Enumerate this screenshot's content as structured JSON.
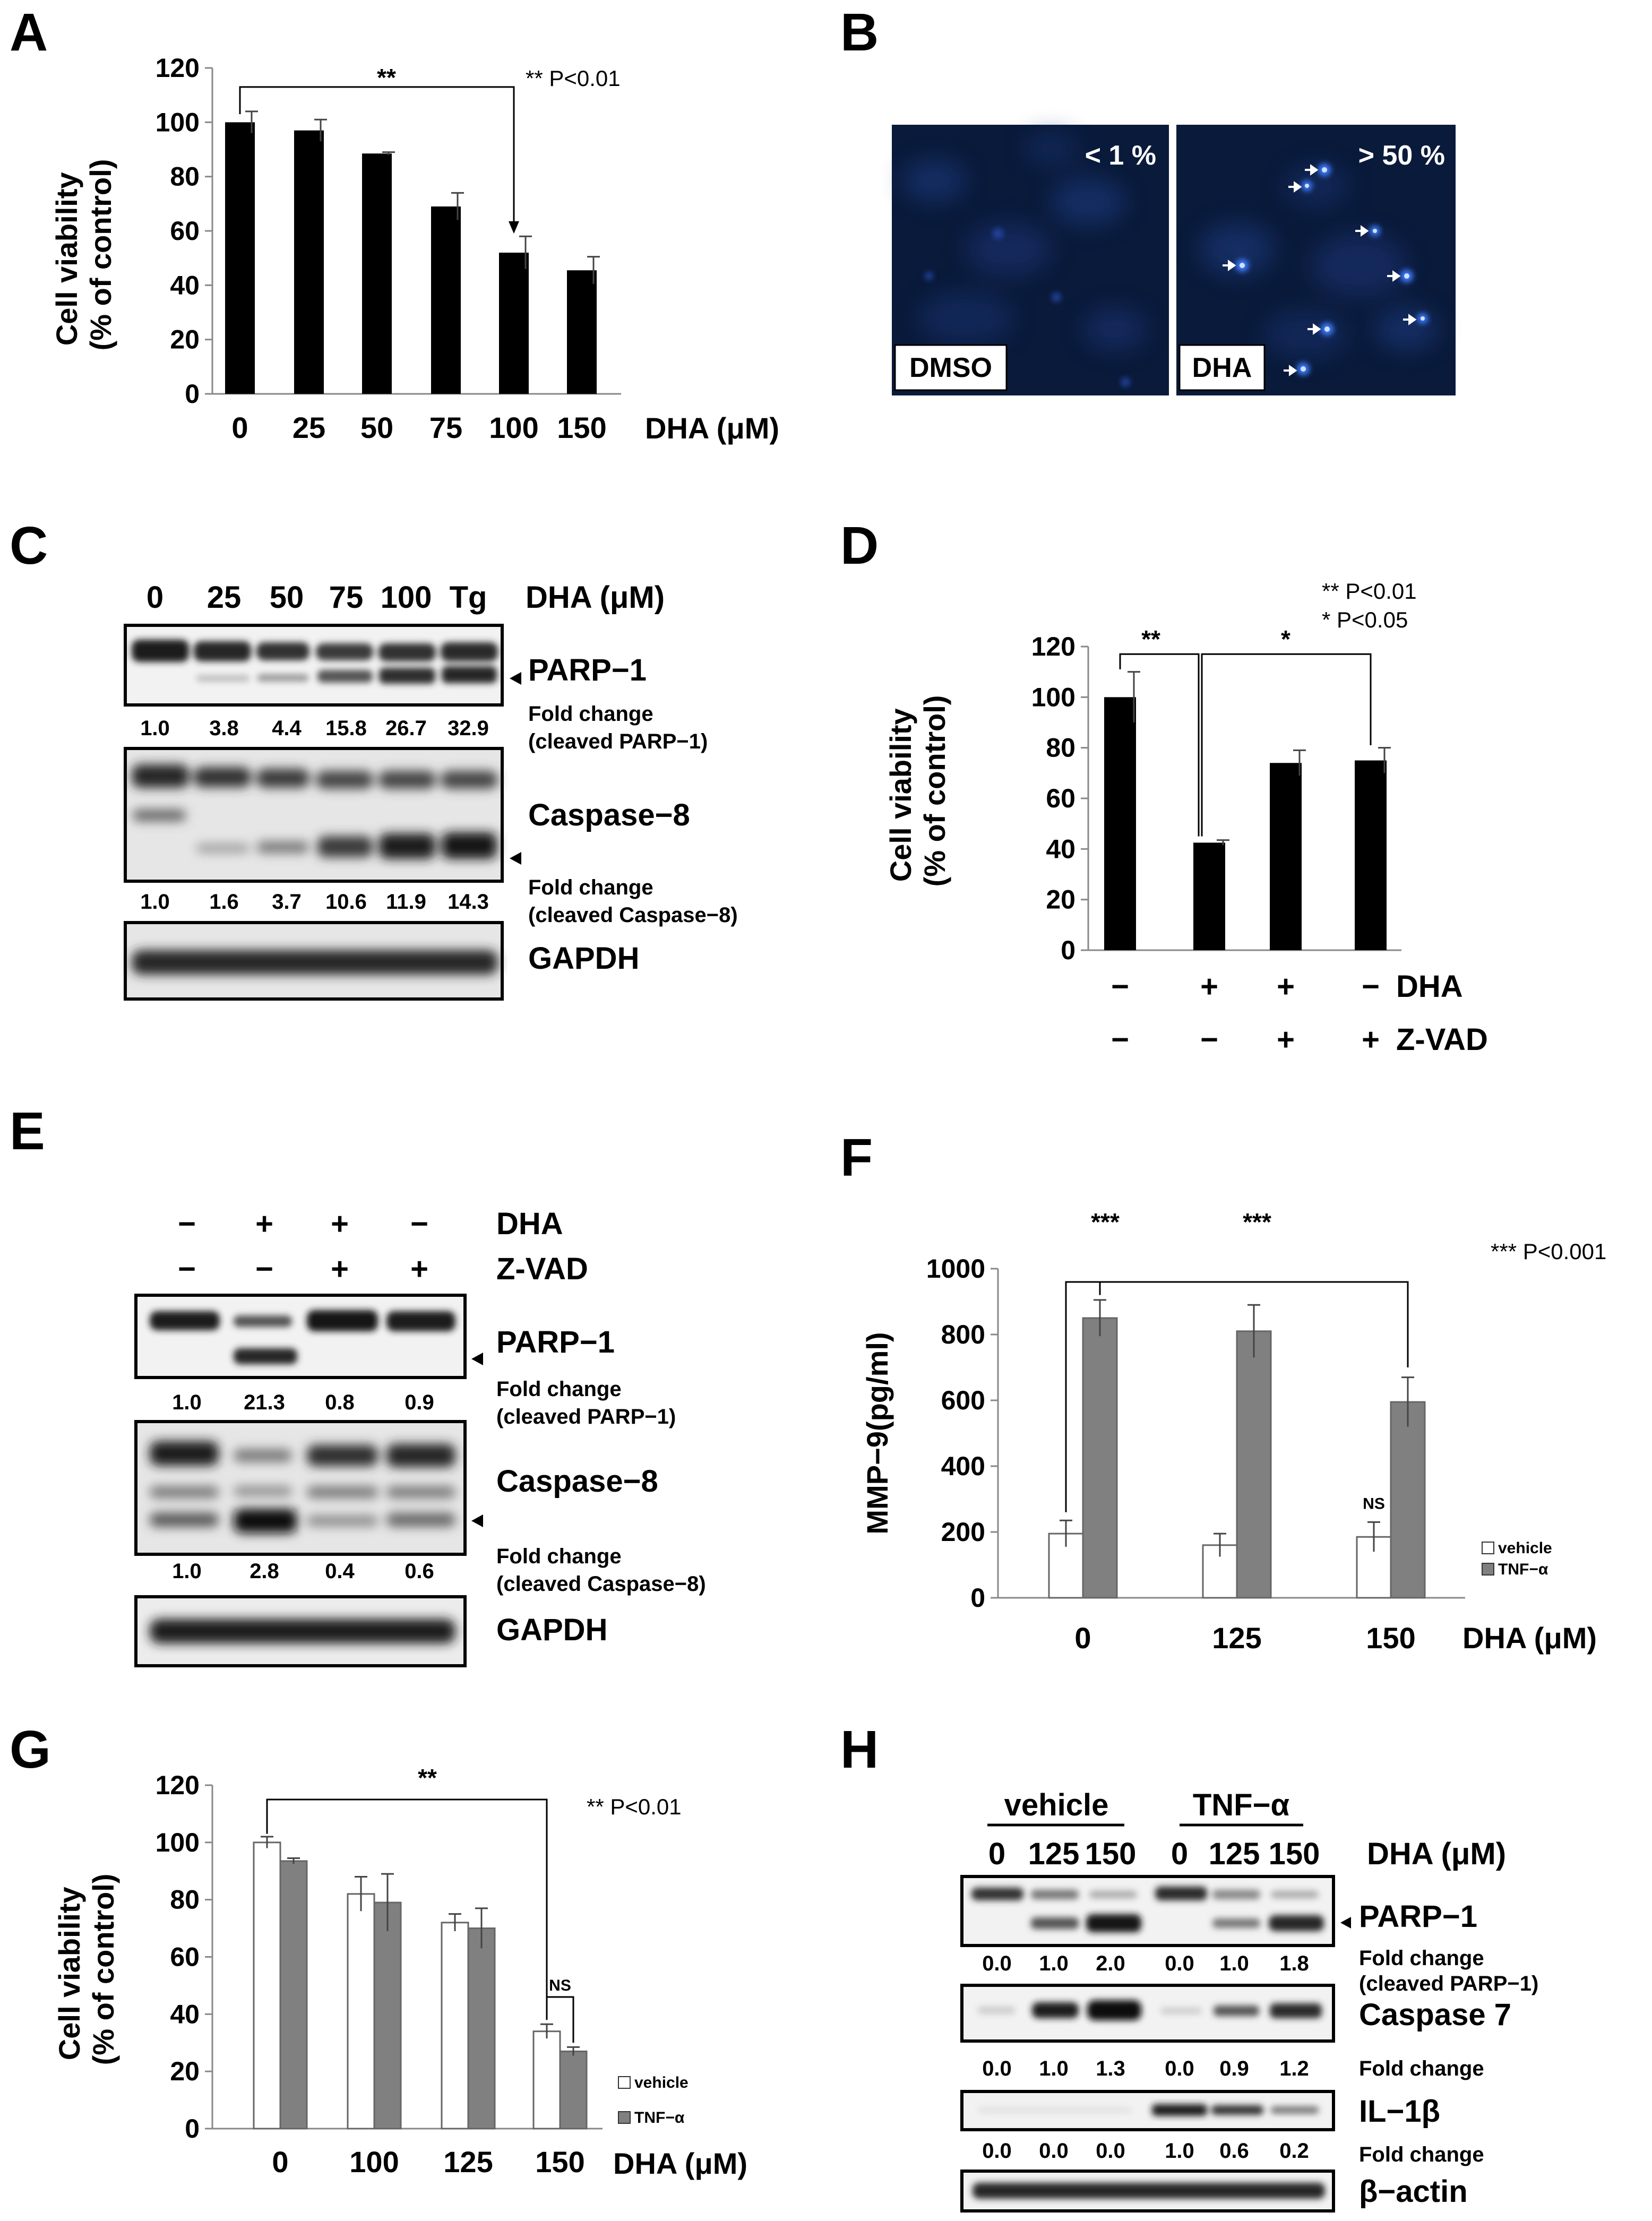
{
  "panels": {
    "A": {
      "label": "A",
      "significance": "**",
      "p_note": "** P<0.01",
      "chart_data": {
        "type": "bar",
        "categories": [
          "0",
          "25",
          "50",
          "75",
          "100",
          "150"
        ],
        "values": [
          100,
          97,
          88.5,
          69,
          52,
          45.5
        ],
        "errors": [
          4,
          4,
          0.5,
          5,
          6,
          5
        ],
        "title": "",
        "xlabel": "DHA (μM)",
        "ylabel": "Cell viability\n(% of control)",
        "ylabel_lines": [
          "Cell viability",
          "(% of control)"
        ],
        "ylim": [
          0,
          120
        ],
        "yticks": [
          0,
          20,
          40,
          60,
          80,
          100,
          120
        ],
        "colors": [
          "#000000"
        ]
      }
    },
    "B": {
      "label": "B",
      "images": [
        {
          "label": "DMSO",
          "percent": "< 1 %"
        },
        {
          "label": "DHA",
          "percent": "> 50 %"
        }
      ]
    },
    "C": {
      "label": "C",
      "lanes": [
        "0",
        "25",
        "50",
        "75",
        "100",
        "Tg"
      ],
      "treatment_label": "DHA (μM)",
      "blots": [
        {
          "name": "PARP−1",
          "fold_label_1": "Fold change",
          "fold_label_2": "(cleaved PARP−1)",
          "fold": [
            "1.0",
            "3.8",
            "4.4",
            "15.8",
            "26.7",
            "32.9"
          ]
        },
        {
          "name": "Caspase−8",
          "fold_label_1": "Fold change",
          "fold_label_2": "(cleaved Caspase−8)",
          "fold": [
            "1.0",
            "1.6",
            "3.7",
            "10.6",
            "11.9",
            "14.3"
          ]
        },
        {
          "name": "GAPDH"
        }
      ]
    },
    "D": {
      "label": "D",
      "p_note_1": "** P<0.01",
      "p_note_2": "*  P<0.05",
      "sig_1": "**",
      "sig_2": "*",
      "row_labels": [
        "DHA",
        "Z-VAD"
      ],
      "dha_signs": [
        "−",
        "+",
        "+",
        "−"
      ],
      "zvad_signs": [
        "−",
        "−",
        "+",
        "+"
      ],
      "chart_data": {
        "type": "bar",
        "categories": [
          "−/−",
          "+/−",
          "+/+",
          "−/+"
        ],
        "values": [
          100,
          42.5,
          74,
          75
        ],
        "errors": [
          10,
          1,
          5,
          5
        ],
        "title": "",
        "xlabel": "",
        "ylabel": "Cell viability\n(% of control)",
        "ylabel_lines": [
          "Cell viability",
          "(% of control)"
        ],
        "ylim": [
          0,
          120
        ],
        "yticks": [
          0,
          20,
          40,
          60,
          80,
          100,
          120
        ],
        "colors": [
          "#000000"
        ]
      }
    },
    "E": {
      "label": "E",
      "row_labels": [
        "DHA",
        "Z-VAD"
      ],
      "dha_signs": [
        "−",
        "+",
        "+",
        "−"
      ],
      "zvad_signs": [
        "−",
        "−",
        "+",
        "+"
      ],
      "blots": [
        {
          "name": "PARP−1",
          "fold_label_1": "Fold change",
          "fold_label_2": "(cleaved PARP−1)",
          "fold": [
            "1.0",
            "21.3",
            "0.8",
            "0.9"
          ]
        },
        {
          "name": "Caspase−8",
          "fold_label_1": "Fold change",
          "fold_label_2": "(cleaved Caspase−8)",
          "fold": [
            "1.0",
            "2.8",
            "0.4",
            "0.6"
          ]
        },
        {
          "name": "GAPDH"
        }
      ]
    },
    "F": {
      "label": "F",
      "p_note": "*** P<0.001",
      "sig_1": "***",
      "sig_2": "***",
      "ns": "NS",
      "chart_data": {
        "type": "bar",
        "categories": [
          "0",
          "125",
          "150"
        ],
        "series": [
          {
            "name": "vehicle",
            "values": [
              195,
              160,
              185
            ],
            "errors": [
              40,
              35,
              45
            ],
            "color": "#ffffff"
          },
          {
            "name": "TNF−α",
            "values": [
              850,
              810,
              595
            ],
            "errors": [
              55,
              80,
              75
            ],
            "color": "#808080"
          }
        ],
        "title": "",
        "xlabel": "DHA (μM)",
        "ylabel": "MMP−9(pg/ml)",
        "ylim": [
          0,
          1000
        ],
        "yticks": [
          0,
          200,
          400,
          600,
          800,
          1000
        ],
        "legend": "bottom-right"
      }
    },
    "G": {
      "label": "G",
      "p_note": "** P<0.01",
      "sig": "**",
      "ns": "NS",
      "chart_data": {
        "type": "bar",
        "categories": [
          "0",
          "100",
          "125",
          "150"
        ],
        "series": [
          {
            "name": "vehicle",
            "values": [
              100,
              82,
              72,
              34
            ],
            "errors": [
              2,
              6,
              3,
              2.5
            ],
            "color": "#ffffff"
          },
          {
            "name": "TNF−α",
            "values": [
              93.5,
              79,
              70,
              27
            ],
            "errors": [
              1,
              10,
              7,
              1.5
            ],
            "color": "#808080"
          }
        ],
        "title": "",
        "xlabel": "DHA (μM)",
        "ylabel": "Cell viability\n(% of control)",
        "ylabel_lines": [
          "Cell viability",
          "(% of control)"
        ],
        "ylim": [
          0,
          120
        ],
        "yticks": [
          0,
          20,
          40,
          60,
          80,
          100,
          120
        ],
        "legend": "bottom-right"
      }
    },
    "H": {
      "label": "H",
      "groups": [
        "vehicle",
        "TNF−α"
      ],
      "lanes": [
        "0",
        "125",
        "150",
        "0",
        "125",
        "150"
      ],
      "treatment_label": "DHA (μM)",
      "blots": [
        {
          "name": "PARP−1",
          "fold_label_1": "Fold change",
          "fold_label_2": "(cleaved PARP−1)",
          "fold": [
            "0.0",
            "1.0",
            "2.0",
            "0.0",
            "1.0",
            "1.8"
          ]
        },
        {
          "name": "Caspase 7",
          "fold_label_1": "Fold change",
          "fold": [
            "0.0",
            "1.0",
            "1.3",
            "0.0",
            "0.9",
            "1.2"
          ]
        },
        {
          "name": "IL−1β",
          "fold_label_1": "Fold change",
          "fold": [
            "0.0",
            "0.0",
            "0.0",
            "1.0",
            "0.6",
            "0.2"
          ]
        },
        {
          "name": "β−actin"
        }
      ]
    }
  }
}
